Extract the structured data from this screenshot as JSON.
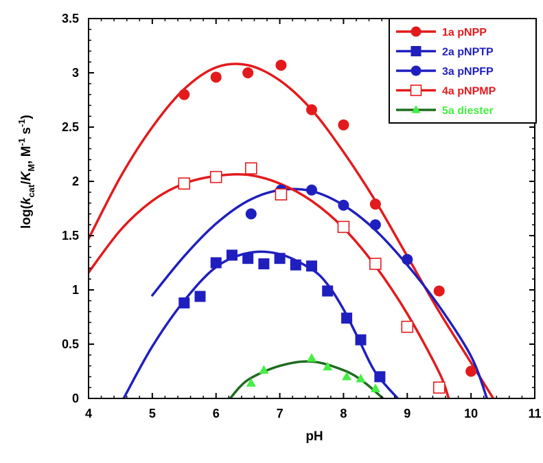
{
  "chart_data": {
    "type": "scatter",
    "xlabel": "pH",
    "ylabel": {
      "prefix": "log(",
      "k": "k",
      "cat_sub": "cat",
      "slash": "/",
      "K": "K",
      "M_sub": "M",
      "comma_unit": ", M",
      "minus1": "-1",
      "space_s": " s",
      "minus1b": "-1",
      "close": ")"
    },
    "xlim": [
      4,
      11
    ],
    "ylim": [
      0,
      3.5
    ],
    "xticks": [
      "4",
      "5",
      "6",
      "7",
      "8",
      "9",
      "10",
      "11"
    ],
    "yticks": [
      "0",
      "0.5",
      "1",
      "1.5",
      "2",
      "2.5",
      "3",
      "3.5"
    ],
    "grid": false,
    "legend_position": "top-right",
    "series": [
      {
        "name": "1a pNPP",
        "color": "#e31a1c",
        "marker": "circle",
        "filled": true,
        "points": [
          [
            5.5,
            2.8
          ],
          [
            6.0,
            2.96
          ],
          [
            6.5,
            3.0
          ],
          [
            7.02,
            3.07
          ],
          [
            7.5,
            2.66
          ],
          [
            8.0,
            2.52
          ],
          [
            8.5,
            1.79
          ],
          [
            9.0,
            1.28
          ],
          [
            9.5,
            0.99
          ],
          [
            10.0,
            0.25
          ]
        ],
        "fit": [
          [
            4.0,
            1.47
          ],
          [
            4.5,
            2.04
          ],
          [
            5.0,
            2.5
          ],
          [
            5.5,
            2.85
          ],
          [
            6.0,
            3.05
          ],
          [
            6.5,
            3.07
          ],
          [
            7.0,
            2.93
          ],
          [
            7.5,
            2.66
          ],
          [
            8.0,
            2.27
          ],
          [
            8.5,
            1.82
          ],
          [
            9.0,
            1.31
          ],
          [
            9.5,
            0.8
          ],
          [
            10.0,
            0.33
          ],
          [
            10.35,
            0.0
          ]
        ]
      },
      {
        "name": "2a pNPTP",
        "color": "#1f1fbf",
        "marker": "square",
        "filled": true,
        "points": [
          [
            5.5,
            0.88
          ],
          [
            5.75,
            0.94
          ],
          [
            6.0,
            1.25
          ],
          [
            6.25,
            1.32
          ],
          [
            6.5,
            1.29
          ],
          [
            6.75,
            1.24
          ],
          [
            7.0,
            1.29
          ],
          [
            7.25,
            1.23
          ],
          [
            7.5,
            1.22
          ],
          [
            7.75,
            0.99
          ],
          [
            8.05,
            0.74
          ],
          [
            8.27,
            0.54
          ],
          [
            8.57,
            0.2
          ]
        ],
        "fit": [
          [
            4.55,
            0.0
          ],
          [
            5.0,
            0.48
          ],
          [
            5.5,
            0.9
          ],
          [
            6.0,
            1.21
          ],
          [
            6.5,
            1.34
          ],
          [
            7.0,
            1.33
          ],
          [
            7.5,
            1.19
          ],
          [
            7.75,
            1.05
          ],
          [
            8.0,
            0.82
          ],
          [
            8.25,
            0.53
          ],
          [
            8.5,
            0.24
          ],
          [
            8.85,
            0.0
          ]
        ]
      },
      {
        "name": "3a pNPFP",
        "color": "#1f1fbf",
        "marker": "circle",
        "filled": true,
        "points": [
          [
            6.55,
            1.7
          ],
          [
            7.02,
            1.92
          ],
          [
            7.5,
            1.92
          ],
          [
            8.0,
            1.78
          ],
          [
            8.5,
            1.6
          ],
          [
            9.0,
            1.28
          ]
        ],
        "fit": [
          [
            5.0,
            0.95
          ],
          [
            5.5,
            1.31
          ],
          [
            6.0,
            1.61
          ],
          [
            6.5,
            1.82
          ],
          [
            7.0,
            1.92
          ],
          [
            7.5,
            1.91
          ],
          [
            8.0,
            1.78
          ],
          [
            8.5,
            1.55
          ],
          [
            9.0,
            1.23
          ],
          [
            9.5,
            0.85
          ],
          [
            10.0,
            0.39
          ],
          [
            10.25,
            0.0
          ]
        ]
      },
      {
        "name": "4a pNPMP",
        "color": "#e31a1c",
        "marker": "square",
        "filled": false,
        "points": [
          [
            5.5,
            1.98
          ],
          [
            6.0,
            2.04
          ],
          [
            6.55,
            2.12
          ],
          [
            7.02,
            1.88
          ],
          [
            8.0,
            1.58
          ],
          [
            8.5,
            1.24
          ],
          [
            9.0,
            0.66
          ],
          [
            9.5,
            0.1
          ]
        ],
        "fit": [
          [
            4.0,
            1.16
          ],
          [
            4.5,
            1.55
          ],
          [
            5.0,
            1.82
          ],
          [
            5.5,
            1.98
          ],
          [
            6.0,
            2.05
          ],
          [
            6.5,
            2.06
          ],
          [
            7.0,
            1.98
          ],
          [
            7.5,
            1.82
          ],
          [
            8.0,
            1.57
          ],
          [
            8.5,
            1.22
          ],
          [
            9.0,
            0.78
          ],
          [
            9.5,
            0.24
          ],
          [
            9.65,
            0.0
          ]
        ]
      },
      {
        "name": "5a diester",
        "color": "#44ee44",
        "line_color": "#1e6b1e",
        "marker": "triangle",
        "filled": true,
        "points": [
          [
            6.55,
            0.14
          ],
          [
            6.75,
            0.26
          ],
          [
            7.5,
            0.37
          ],
          [
            7.75,
            0.29
          ],
          [
            8.05,
            0.2
          ],
          [
            8.27,
            0.18
          ],
          [
            8.5,
            0.09
          ]
        ],
        "fit": [
          [
            6.22,
            0.0
          ],
          [
            6.5,
            0.17
          ],
          [
            7.0,
            0.3
          ],
          [
            7.5,
            0.34
          ],
          [
            8.0,
            0.26
          ],
          [
            8.3,
            0.16
          ],
          [
            8.62,
            0.0
          ]
        ]
      }
    ]
  }
}
